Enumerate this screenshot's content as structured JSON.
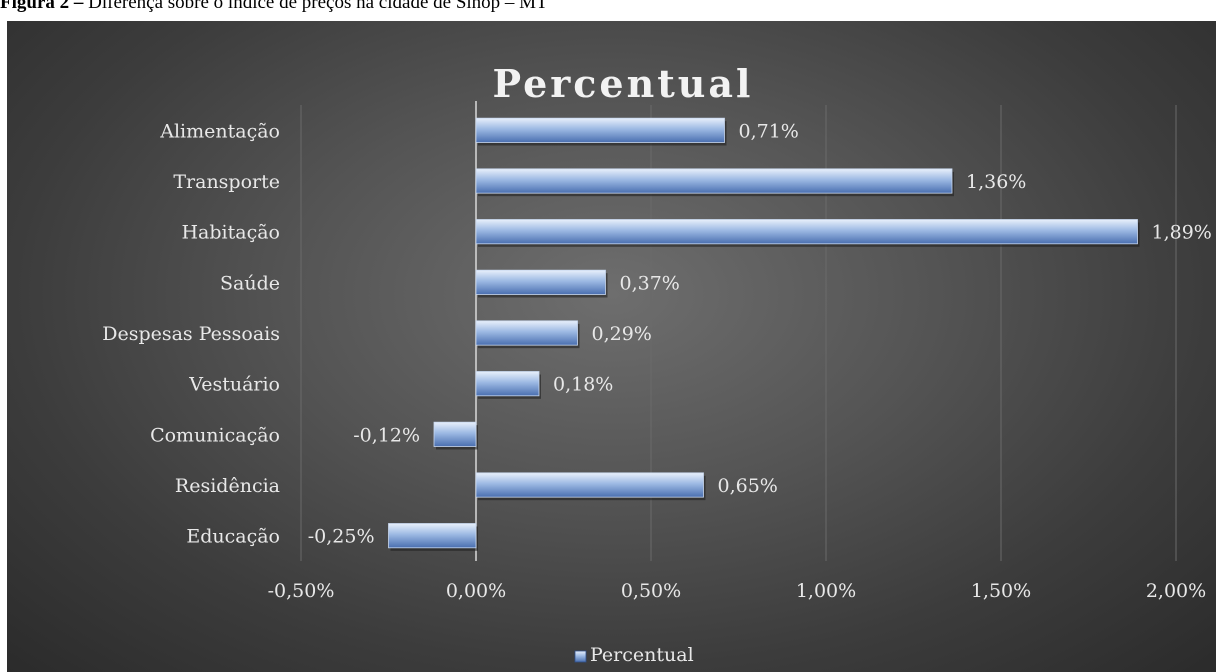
{
  "caption": {
    "bold": "Figura 2 –",
    "text": " Diferença sobre o índice de preços na cidade de Sinop – MT"
  },
  "colors": {
    "background": "#3c3c3c",
    "bar_top": "#e8f0fb",
    "bar_mid": "#9cb9e3",
    "bar_bottom": "#4a6fb0",
    "text": "#e8e8e8",
    "grid": "#6a6a6a"
  },
  "chart_data": {
    "type": "bar",
    "orientation": "horizontal",
    "title": "Percentual",
    "categories": [
      "Alimentação",
      "Transporte",
      "Habitação",
      "Saúde",
      "Despesas Pessoais",
      "Vestuário",
      "Comunicação",
      "Residência",
      "Educação"
    ],
    "series": [
      {
        "name": "Percentual",
        "values": [
          0.71,
          1.36,
          1.89,
          0.37,
          0.29,
          0.18,
          -0.12,
          0.65,
          -0.25
        ],
        "labels": [
          "0,71%",
          "1,36%",
          "1,89%",
          "0,37%",
          "0,29%",
          "0,18%",
          "-0,12%",
          "0,65%",
          "-0,25%"
        ]
      }
    ],
    "xlim": [
      -0.5,
      2.0
    ],
    "xticks": [
      -0.5,
      0.0,
      0.5,
      1.0,
      1.5,
      2.0
    ],
    "xtick_labels": [
      "-0,50%",
      "0,00%",
      "0,50%",
      "1,00%",
      "1,50%",
      "2,00%"
    ],
    "grid": true,
    "legend": "bottom"
  }
}
